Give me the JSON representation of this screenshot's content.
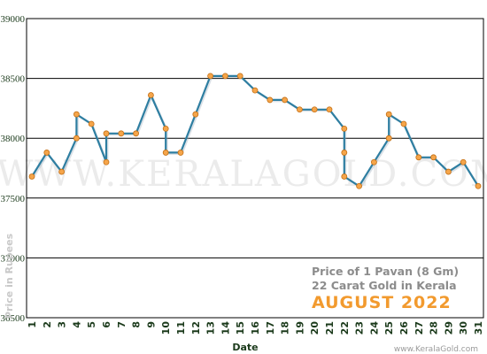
{
  "chart_data": {
    "type": "line",
    "title": "",
    "xlabel": "Date",
    "ylabel": "Price in Rupees",
    "ylim": [
      36500,
      39000
    ],
    "yticks": [
      36500,
      37000,
      37500,
      38000,
      38500,
      39000
    ],
    "xticks": [
      "1",
      "2",
      "3",
      "4",
      "5",
      "6",
      "7",
      "8",
      "9",
      "10",
      "11",
      "12",
      "13",
      "14",
      "15",
      "16",
      "17",
      "18",
      "19",
      "20",
      "21",
      "22",
      "23",
      "24",
      "25",
      "26",
      "27",
      "28",
      "29",
      "30",
      "31"
    ],
    "series": [
      {
        "x": [
          1,
          2,
          3,
          4,
          4,
          5,
          6,
          6,
          7,
          8,
          9,
          10,
          10,
          11,
          12,
          13,
          14,
          15,
          16,
          17,
          18,
          19,
          20,
          21,
          22,
          22,
          22,
          23,
          24,
          25,
          25,
          26,
          27,
          28,
          29,
          30,
          31
        ],
        "values": [
          37680,
          37880,
          37720,
          38000,
          38200,
          38120,
          37800,
          38040,
          38040,
          38040,
          38360,
          38080,
          37880,
          37880,
          38200,
          38520,
          38520,
          38520,
          38400,
          38320,
          38320,
          38240,
          38240,
          38240,
          38080,
          37880,
          37680,
          37600,
          37800,
          38000,
          38200,
          38120,
          37840,
          37840,
          37720,
          37800,
          37600
        ]
      }
    ],
    "grid": "horizontal",
    "line_color": "#2e7ea1",
    "marker_color": "#f5a54a"
  },
  "annotations": {
    "line1": "Price of 1 Pavan (8 Gm)",
    "line2": "22 Carat Gold in Kerala",
    "month": "AUGUST 2022",
    "watermark": "WWW.KERALAGOLD.COM",
    "credit": "www.KeralaGold.com"
  }
}
